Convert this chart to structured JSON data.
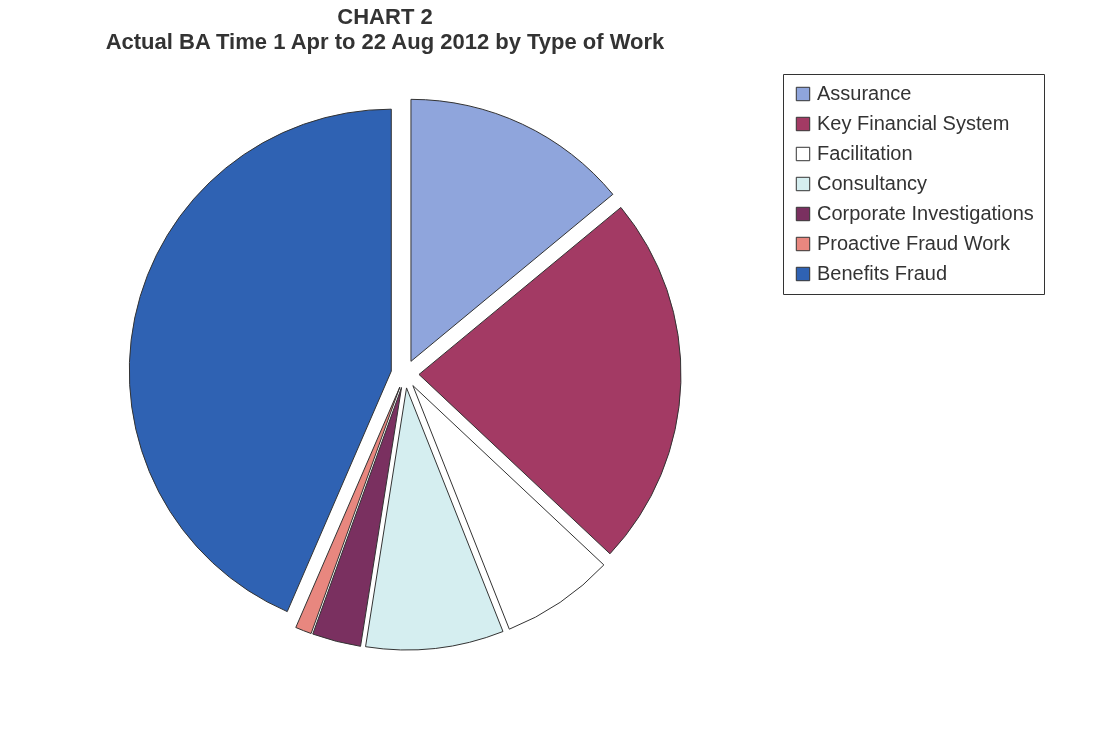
{
  "chart_data": {
    "type": "pie",
    "title": "CHART 2",
    "subtitle": "Actual BA Time 1 Apr to 22 Aug 2012 by Type of Work",
    "categories": [
      "Assurance",
      "Key Financial System",
      "Facilitation",
      "Consultancy",
      "Corporate Investigations",
      "Proactive Fraud Work",
      "Benefits Fraud"
    ],
    "values": [
      14,
      23,
      7,
      8.5,
      3,
      1,
      43.5
    ],
    "colors": [
      "#8fa5dc",
      "#a33a64",
      "#ffffff",
      "#d5eef0",
      "#7a3060",
      "#e8877f",
      "#2f62b3"
    ],
    "legend": "right"
  }
}
